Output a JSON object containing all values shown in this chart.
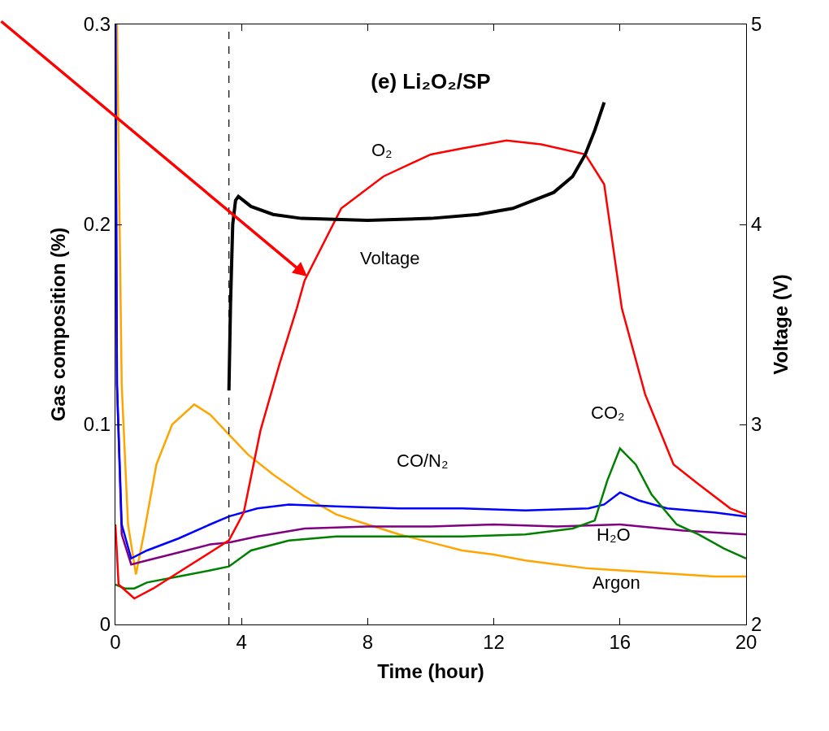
{
  "chart_data": {
    "type": "line",
    "title": "(e) Li₂O₂/SP",
    "xlabel": "Time (hour)",
    "ylabel": "Gas composition (%)",
    "y2label": "Voltage (V)",
    "xlim": [
      0,
      20
    ],
    "xticks": [
      0,
      4,
      8,
      12,
      16,
      20
    ],
    "ylim": [
      0,
      0.3
    ],
    "yticks": [
      0,
      0.1,
      0.2,
      0.3
    ],
    "y2lim": [
      2,
      5
    ],
    "y2ticks": [
      2,
      3,
      4,
      5
    ],
    "grid": false,
    "legend": false,
    "marker": "none",
    "line_style": "solid",
    "series": [
      {
        "name": "Argon",
        "color": "#ffa500",
        "x": [
          0,
          0.05,
          0.2,
          0.4,
          0.65,
          0.9,
          1.3,
          1.8,
          2.5,
          3.0,
          3.6,
          4.2,
          5,
          6,
          7,
          8,
          9,
          10,
          11,
          12,
          13,
          14,
          15,
          16,
          17,
          18,
          19,
          20
        ],
        "values": [
          0.3,
          0.3,
          0.12,
          0.05,
          0.025,
          0.045,
          0.08,
          0.1,
          0.11,
          0.105,
          0.095,
          0.085,
          0.075,
          0.064,
          0.055,
          0.05,
          0.045,
          0.041,
          0.037,
          0.035,
          0.032,
          0.03,
          0.028,
          0.027,
          0.026,
          0.025,
          0.024,
          0.024
        ]
      },
      {
        "name": "H₂O",
        "color": "#800080",
        "x": [
          0,
          0.05,
          0.2,
          0.5,
          1,
          2,
          3,
          3.6,
          4.5,
          6,
          8,
          10,
          12,
          14,
          16,
          18,
          20
        ],
        "values": [
          0.3,
          0.12,
          0.045,
          0.03,
          0.032,
          0.036,
          0.04,
          0.041,
          0.044,
          0.048,
          0.049,
          0.049,
          0.05,
          0.049,
          0.05,
          0.047,
          0.045
        ]
      },
      {
        "name": "CO/N₂",
        "color": "#0000ff",
        "x": [
          0,
          0.05,
          0.2,
          0.5,
          1,
          2,
          3,
          3.6,
          4.5,
          5.5,
          7,
          9,
          11,
          13,
          15,
          15.5,
          16,
          16.6,
          17.5,
          19,
          20
        ],
        "values": [
          0.3,
          0.12,
          0.05,
          0.033,
          0.037,
          0.043,
          0.05,
          0.054,
          0.058,
          0.06,
          0.059,
          0.058,
          0.058,
          0.057,
          0.058,
          0.06,
          0.066,
          0.062,
          0.058,
          0.056,
          0.054
        ]
      },
      {
        "name": "CO₂",
        "color": "#008000",
        "x": [
          0,
          0.3,
          0.6,
          1,
          2,
          3,
          3.6,
          4.3,
          5.5,
          7,
          9,
          11,
          13,
          14.5,
          15.2,
          15.6,
          16,
          16.5,
          17,
          17.8,
          18.5,
          19.3,
          20
        ],
        "values": [
          0.02,
          0.018,
          0.018,
          0.021,
          0.024,
          0.027,
          0.029,
          0.037,
          0.042,
          0.044,
          0.044,
          0.044,
          0.045,
          0.048,
          0.052,
          0.072,
          0.088,
          0.08,
          0.065,
          0.05,
          0.045,
          0.038,
          0.033
        ]
      },
      {
        "name": "O₂",
        "color": "#ff0000",
        "x": [
          0,
          0.1,
          0.6,
          1.2,
          2,
          3,
          3.6,
          4.07,
          4.6,
          5.2,
          5.75,
          6.0,
          7.16,
          8.5,
          10,
          11,
          12.4,
          13.5,
          14.9,
          15.5,
          16.06,
          16.8,
          17.7,
          18.5,
          19.5,
          20
        ],
        "values": [
          0.05,
          0.02,
          0.013,
          0.018,
          0.026,
          0.036,
          0.042,
          0.056,
          0.097,
          0.13,
          0.158,
          0.172,
          0.208,
          0.224,
          0.235,
          0.238,
          0.242,
          0.24,
          0.235,
          0.22,
          0.158,
          0.115,
          0.08,
          0.07,
          0.058,
          0.055
        ]
      },
      {
        "name": "Voltage",
        "color": "#000000",
        "axis": "y2",
        "x": [
          3.6,
          3.65,
          3.72,
          3.81,
          3.9,
          4.3,
          5,
          5.9,
          8,
          10,
          11.5,
          12.6,
          13.9,
          14.5,
          14.9,
          15.2,
          15.5
        ],
        "values": [
          3.17,
          3.6,
          4.0,
          4.12,
          4.14,
          4.09,
          4.05,
          4.03,
          4.02,
          4.03,
          4.05,
          4.08,
          4.16,
          4.24,
          4.35,
          4.47,
          4.61
        ]
      }
    ],
    "ref_lines": [
      {
        "axis": "x",
        "value": 3.6,
        "color": "#000000",
        "line_style": "dashed"
      }
    ]
  }
}
